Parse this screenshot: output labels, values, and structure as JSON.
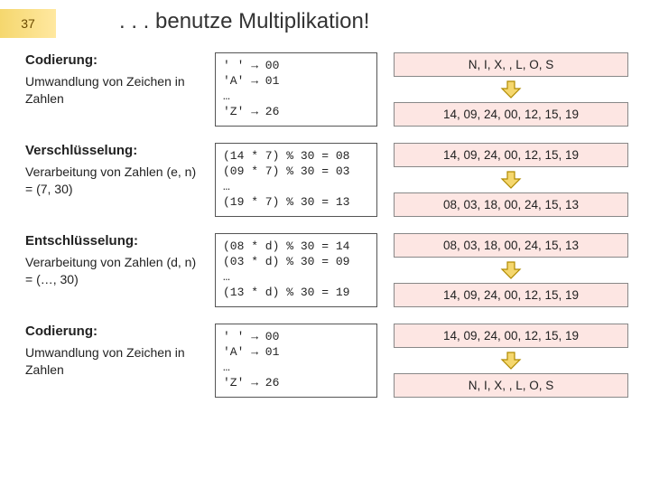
{
  "slide_number": "37",
  "title": ". . . benutze Multiplikation!",
  "sections": [
    {
      "heading": "Codierung:",
      "desc": "Umwandlung von Zeichen in Zahlen",
      "mid": [
        "' ' → 00",
        "'A' → 01",
        "…",
        "'Z' → 26"
      ],
      "right_top": "N, I, X, , L, O, S",
      "right_bot": "14, 09, 24, 00, 12, 15, 19"
    },
    {
      "heading": "Verschlüsselung:",
      "desc": "Verarbeitung von Zahlen (e, n) = (7, 30)",
      "mid": [
        "(14 * 7) % 30 = 08",
        "(09 * 7) % 30 = 03",
        "…",
        "(19 * 7) % 30 = 13"
      ],
      "right_top": "14, 09, 24, 00, 12, 15, 19",
      "right_bot": "08, 03, 18, 00, 24, 15, 13"
    },
    {
      "heading": "Entschlüsselung:",
      "desc": "Verarbeitung von Zahlen (d, n) = (…, 30)",
      "mid": [
        "(08 * d) % 30 = 14",
        "(03 * d) % 30 = 09",
        "…",
        "(13 * d) % 30 = 19"
      ],
      "right_top": "08, 03, 18, 00, 24, 15, 13",
      "right_bot": "14, 09, 24, 00, 12, 15, 19"
    },
    {
      "heading": "Codierung:",
      "desc": "Umwandlung von Zeichen in Zahlen",
      "mid": [
        "' ' → 00",
        "'A' → 01",
        "…",
        "'Z' → 26"
      ],
      "right_top": "14, 09, 24, 00, 12, 15, 19",
      "right_bot": "N, I, X, , L, O, S"
    }
  ],
  "colors": {
    "pink_bg": "#fde6e3",
    "arrow_fill": "#f5d76e",
    "arrow_stroke": "#b08a00"
  }
}
